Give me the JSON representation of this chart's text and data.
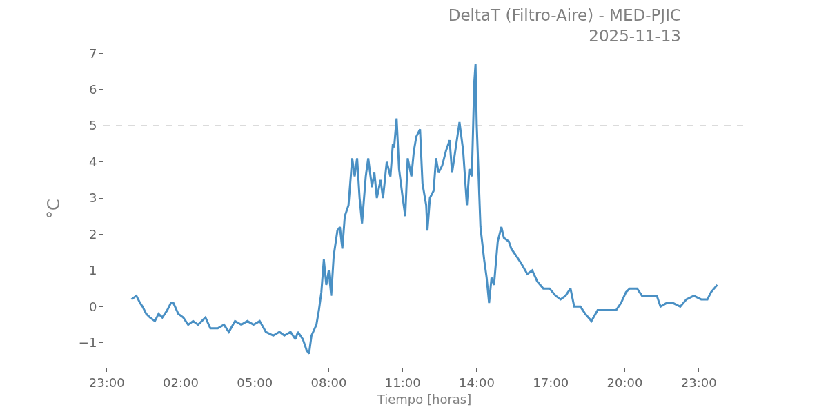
{
  "chart_data": {
    "type": "line",
    "title": "DeltaT (Filtro-Aire) - MED-PJIC\n2025-11-13",
    "xlabel": "Tiempo [horas]",
    "ylabel": "°C",
    "x": [
      "2025-11-13T00:00",
      "2025-11-13T00:12",
      "2025-11-13T00:21",
      "2025-11-13T00:27",
      "2025-11-13T00:36",
      "2025-11-13T00:45",
      "2025-11-13T00:57",
      "2025-11-13T01:06",
      "2025-11-13T01:15",
      "2025-11-13T01:27",
      "2025-11-13T01:36",
      "2025-11-13T01:42",
      "2025-11-13T01:54",
      "2025-11-13T02:06",
      "2025-11-13T02:18",
      "2025-11-13T02:30",
      "2025-11-13T02:42",
      "2025-11-13T03:00",
      "2025-11-13T03:12",
      "2025-11-13T03:30",
      "2025-11-13T03:45",
      "2025-11-13T03:57",
      "2025-11-13T04:12",
      "2025-11-13T04:27",
      "2025-11-13T04:42",
      "2025-11-13T04:57",
      "2025-11-13T05:12",
      "2025-11-13T05:27",
      "2025-11-13T05:45",
      "2025-11-13T06:00",
      "2025-11-13T06:12",
      "2025-11-13T06:27",
      "2025-11-13T06:39",
      "2025-11-13T06:45",
      "2025-11-13T06:57",
      "2025-11-13T07:06",
      "2025-11-13T07:12",
      "2025-11-13T07:18",
      "2025-11-13T07:30",
      "2025-11-13T07:36",
      "2025-11-13T07:42",
      "2025-11-13T07:48",
      "2025-11-13T07:54",
      "2025-11-13T08:00",
      "2025-11-13T08:06",
      "2025-11-13T08:12",
      "2025-11-13T08:21",
      "2025-11-13T08:27",
      "2025-11-13T08:33",
      "2025-11-13T08:39",
      "2025-11-13T08:48",
      "2025-11-13T08:57",
      "2025-11-13T09:03",
      "2025-11-13T09:09",
      "2025-11-13T09:15",
      "2025-11-13T09:21",
      "2025-11-13T09:30",
      "2025-11-13T09:36",
      "2025-11-13T09:45",
      "2025-11-13T09:51",
      "2025-11-13T09:57",
      "2025-11-13T10:06",
      "2025-11-13T10:12",
      "2025-11-13T10:21",
      "2025-11-13T10:30",
      "2025-11-13T10:36",
      "2025-11-13T10:39",
      "2025-11-13T10:45",
      "2025-11-13T10:51",
      "2025-11-13T11:00",
      "2025-11-13T11:06",
      "2025-11-13T11:12",
      "2025-11-13T11:21",
      "2025-11-13T11:27",
      "2025-11-13T11:33",
      "2025-11-13T11:42",
      "2025-11-13T11:48",
      "2025-11-13T11:57",
      "2025-11-13T12:00",
      "2025-11-13T12:06",
      "2025-11-13T12:15",
      "2025-11-13T12:21",
      "2025-11-13T12:27",
      "2025-11-13T12:36",
      "2025-11-13T12:45",
      "2025-11-13T12:54",
      "2025-11-13T13:00",
      "2025-11-13T13:09",
      "2025-11-13T13:18",
      "2025-11-13T13:27",
      "2025-11-13T13:36",
      "2025-11-13T13:42",
      "2025-11-13T13:48",
      "2025-11-13T13:54",
      "2025-11-13T13:57",
      "2025-11-13T14:00",
      "2025-11-13T14:09",
      "2025-11-13T14:18",
      "2025-11-13T14:24",
      "2025-11-13T14:30",
      "2025-11-13T14:36",
      "2025-11-13T14:42",
      "2025-11-13T14:51",
      "2025-11-13T15:00",
      "2025-11-13T15:06",
      "2025-11-13T15:18",
      "2025-11-13T15:24",
      "2025-11-13T15:36",
      "2025-11-13T15:48",
      "2025-11-13T16:03",
      "2025-11-13T16:15",
      "2025-11-13T16:27",
      "2025-11-13T16:42",
      "2025-11-13T16:57",
      "2025-11-13T17:12",
      "2025-11-13T17:24",
      "2025-11-13T17:36",
      "2025-11-13T17:48",
      "2025-11-13T17:57",
      "2025-11-13T18:12",
      "2025-11-13T18:24",
      "2025-11-13T18:39",
      "2025-11-13T18:54",
      "2025-11-13T19:09",
      "2025-11-13T19:24",
      "2025-11-13T19:39",
      "2025-11-13T19:51",
      "2025-11-13T20:03",
      "2025-11-13T20:12",
      "2025-11-13T20:30",
      "2025-11-13T20:42",
      "2025-11-13T21:00",
      "2025-11-13T21:18",
      "2025-11-13T21:27",
      "2025-11-13T21:42",
      "2025-11-13T21:57",
      "2025-11-13T22:15",
      "2025-11-13T22:30",
      "2025-11-13T22:48",
      "2025-11-13T23:06",
      "2025-11-13T23:21",
      "2025-11-13T23:30",
      "2025-11-13T23:45"
    ],
    "series": [
      {
        "color": "#4a90c4",
        "values": [
          0.2,
          0.3,
          0.1,
          0.0,
          -0.2,
          -0.3,
          -0.4,
          -0.2,
          -0.3,
          -0.1,
          0.1,
          0.1,
          -0.2,
          -0.3,
          -0.5,
          -0.4,
          -0.5,
          -0.3,
          -0.6,
          -0.6,
          -0.5,
          -0.7,
          -0.4,
          -0.5,
          -0.4,
          -0.5,
          -0.4,
          -0.7,
          -0.8,
          -0.7,
          -0.8,
          -0.7,
          -0.9,
          -0.7,
          -0.9,
          -1.2,
          -1.3,
          -0.8,
          -0.5,
          -0.1,
          0.4,
          1.3,
          0.6,
          1.0,
          0.3,
          1.4,
          2.1,
          2.2,
          1.6,
          2.5,
          2.8,
          4.1,
          3.6,
          4.1,
          3.0,
          2.3,
          3.6,
          4.1,
          3.3,
          3.7,
          3.0,
          3.5,
          3.0,
          4.0,
          3.6,
          4.5,
          4.4,
          5.2,
          3.8,
          3.0,
          2.5,
          4.1,
          3.6,
          4.3,
          4.7,
          4.9,
          3.4,
          2.8,
          2.1,
          3.0,
          3.2,
          4.1,
          3.7,
          3.9,
          4.3,
          4.6,
          3.7,
          4.4,
          5.1,
          4.3,
          2.8,
          3.8,
          3.6,
          6.2,
          6.7,
          5.0,
          2.2,
          1.3,
          0.8,
          0.1,
          0.8,
          0.6,
          1.8,
          2.2,
          1.9,
          1.8,
          1.6,
          1.4,
          1.2,
          0.9,
          1.0,
          0.7,
          0.5,
          0.5,
          0.3,
          0.2,
          0.3,
          0.5,
          0.0,
          0.0,
          -0.2,
          -0.4,
          -0.1,
          -0.1,
          -0.1,
          -0.1,
          0.1,
          0.4,
          0.5,
          0.5,
          0.3,
          0.3,
          0.3,
          0.0,
          0.1,
          0.1,
          0.0,
          0.2,
          0.3,
          0.2,
          0.2,
          0.4,
          0.6
        ]
      }
    ],
    "xlim": [
      "2025-11-12T22:52",
      "2025-11-14T00:53"
    ],
    "xticks": [
      {
        "value": "2025-11-12T23:00",
        "label": "23:00"
      },
      {
        "value": "2025-11-13T02:00",
        "label": "02:00"
      },
      {
        "value": "2025-11-13T05:00",
        "label": "05:00"
      },
      {
        "value": "2025-11-13T08:00",
        "label": "08:00"
      },
      {
        "value": "2025-11-13T11:00",
        "label": "11:00"
      },
      {
        "value": "2025-11-13T14:00",
        "label": "14:00"
      },
      {
        "value": "2025-11-13T17:00",
        "label": "17:00"
      },
      {
        "value": "2025-11-13T20:00",
        "label": "20:00"
      },
      {
        "value": "2025-11-13T23:00",
        "label": "23:00"
      }
    ],
    "ylim": [
      -1.69,
      7.1
    ],
    "yticks": [
      {
        "value": -1,
        "label": "−1"
      },
      0,
      1,
      2,
      3,
      4,
      5,
      6,
      7
    ],
    "ref_lines": [
      {
        "axis": "y",
        "value": 5,
        "color": "#b8b8b8",
        "line_style": "dashed"
      }
    ],
    "grid": false,
    "marker": "none",
    "line_style": "solid"
  }
}
